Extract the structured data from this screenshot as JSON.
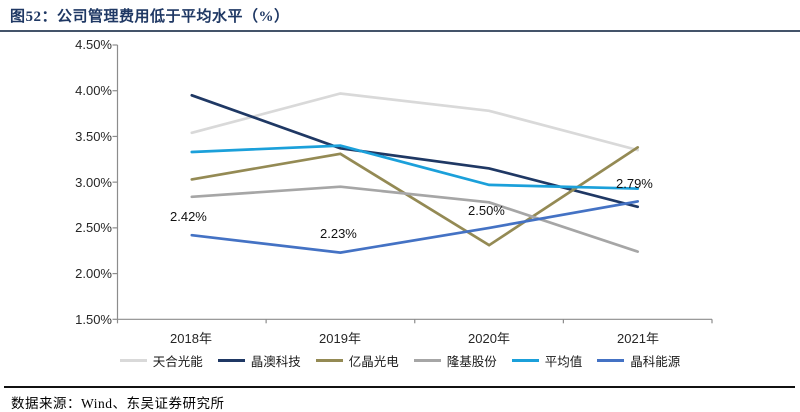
{
  "title": "图52：公司管理费用低于平均水平（%）",
  "footer": {
    "source_label": "数据来源：Wind、东吴证券研究所"
  },
  "chart_data": {
    "type": "line",
    "title": "公司管理费用低于平均水平（%）",
    "categories": [
      "2018年",
      "2019年",
      "2020年",
      "2021年"
    ],
    "series": [
      {
        "name": "天合光能",
        "color": "#D9D9D9",
        "values": [
          3.54,
          3.97,
          3.78,
          3.35
        ]
      },
      {
        "name": "晶澳科技",
        "color": "#1F3864",
        "values": [
          3.95,
          3.37,
          3.15,
          2.73
        ]
      },
      {
        "name": "亿晶光电",
        "color": "#948A54",
        "values": [
          3.03,
          3.31,
          2.31,
          3.38
        ]
      },
      {
        "name": "隆基股份",
        "color": "#A6A6A6",
        "values": [
          2.84,
          2.95,
          2.78,
          2.24
        ]
      },
      {
        "name": "平均值",
        "color": "#1BA0DA",
        "values": [
          3.33,
          3.4,
          2.97,
          2.93
        ]
      },
      {
        "name": "晶科能源",
        "color": "#4472C4",
        "values": [
          2.42,
          2.23,
          2.5,
          2.79
        ]
      }
    ],
    "annotations": [
      {
        "text": "2.42%",
        "series": "晶科能源",
        "category": "2018年",
        "value": 2.42
      },
      {
        "text": "2.23%",
        "series": "晶科能源",
        "category": "2019年",
        "value": 2.23
      },
      {
        "text": "2.50%",
        "series": "晶科能源",
        "category": "2020年",
        "value": 2.5
      },
      {
        "text": "2.79%",
        "series": "晶科能源",
        "category": "2021年",
        "value": 2.79
      }
    ],
    "ylim": [
      1.5,
      4.5
    ],
    "ytick_step": 0.5,
    "ytick_labels": [
      "4.50%",
      "4.00%",
      "3.50%",
      "3.00%",
      "2.50%",
      "2.00%",
      "1.50%"
    ],
    "xlabel": "",
    "ylabel": "",
    "grid": false,
    "legend_position": "bottom",
    "axis_color": "#8C8C8C"
  }
}
